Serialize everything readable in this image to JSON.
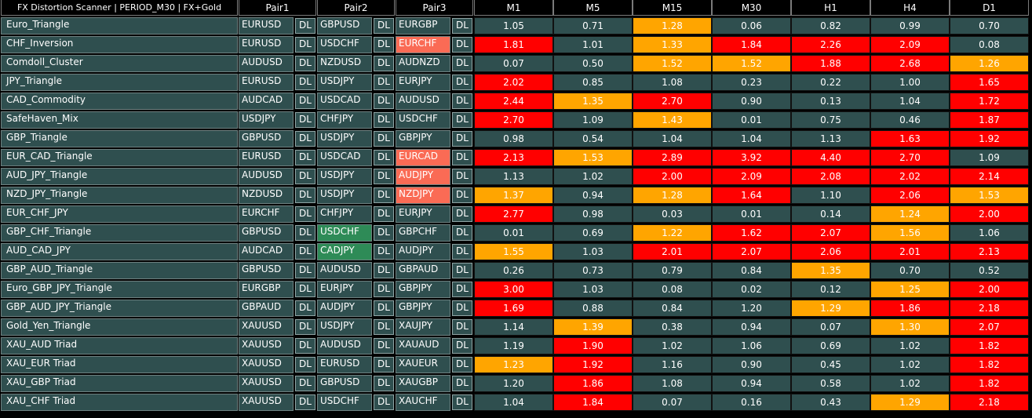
{
  "title": "FX Distortion Scanner | PERIOD_M30 | FX+Gold",
  "headers": [
    "Pair1",
    "Pair2",
    "Pair3",
    "M1",
    "M5",
    "M15",
    "M30",
    "H1",
    "H4",
    "D1"
  ],
  "dl_label": "DL",
  "colors": {
    "neutral": "#2f4f4f",
    "red": "#ff0000",
    "orange": "#ffa500",
    "pair_red": "#fa6b55",
    "pair_green": "#2e8b57"
  },
  "rows": [
    {
      "name": "Euro_Triangle",
      "pairs": [
        "EURUSD",
        "GBPUSD",
        "EURGBP"
      ],
      "pair_states": [
        "normal",
        "normal",
        "normal"
      ],
      "values": [
        "1.05",
        "0.71",
        "1.28",
        "0.06",
        "0.82",
        "0.99",
        "0.70"
      ],
      "states": [
        "neutral",
        "neutral",
        "orange",
        "neutral",
        "neutral",
        "neutral",
        "neutral"
      ]
    },
    {
      "name": "CHF_Inversion",
      "pairs": [
        "EURUSD",
        "USDCHF",
        "EURCHF"
      ],
      "pair_states": [
        "normal",
        "normal",
        "red"
      ],
      "values": [
        "1.81",
        "1.01",
        "1.33",
        "1.84",
        "2.26",
        "2.09",
        "0.08"
      ],
      "states": [
        "red",
        "neutral",
        "orange",
        "red",
        "red",
        "red",
        "neutral"
      ]
    },
    {
      "name": "Comdoll_Cluster",
      "pairs": [
        "AUDUSD",
        "NZDUSD",
        "AUDNZD"
      ],
      "pair_states": [
        "normal",
        "normal",
        "normal"
      ],
      "values": [
        "0.07",
        "0.50",
        "1.52",
        "1.52",
        "1.88",
        "2.68",
        "1.26"
      ],
      "states": [
        "neutral",
        "neutral",
        "orange",
        "orange",
        "red",
        "red",
        "orange"
      ]
    },
    {
      "name": "JPY_Triangle",
      "pairs": [
        "EURUSD",
        "USDJPY",
        "EURJPY"
      ],
      "pair_states": [
        "normal",
        "normal",
        "normal"
      ],
      "values": [
        "2.02",
        "0.85",
        "1.08",
        "0.23",
        "0.22",
        "1.00",
        "1.65"
      ],
      "states": [
        "red",
        "neutral",
        "neutral",
        "neutral",
        "neutral",
        "neutral",
        "red"
      ]
    },
    {
      "name": "CAD_Commodity",
      "pairs": [
        "AUDCAD",
        "USDCAD",
        "AUDUSD"
      ],
      "pair_states": [
        "normal",
        "normal",
        "normal"
      ],
      "values": [
        "2.44",
        "1.35",
        "2.70",
        "0.90",
        "0.13",
        "1.04",
        "1.72"
      ],
      "states": [
        "red",
        "orange",
        "red",
        "neutral",
        "neutral",
        "neutral",
        "red"
      ]
    },
    {
      "name": "SafeHaven_Mix",
      "pairs": [
        "USDJPY",
        "CHFJPY",
        "USDCHF"
      ],
      "pair_states": [
        "normal",
        "normal",
        "normal"
      ],
      "values": [
        "2.70",
        "1.09",
        "1.43",
        "0.01",
        "0.75",
        "0.46",
        "1.87"
      ],
      "states": [
        "red",
        "neutral",
        "orange",
        "neutral",
        "neutral",
        "neutral",
        "red"
      ]
    },
    {
      "name": "GBP_Triangle",
      "pairs": [
        "GBPUSD",
        "USDJPY",
        "GBPJPY"
      ],
      "pair_states": [
        "normal",
        "normal",
        "normal"
      ],
      "values": [
        "0.98",
        "0.54",
        "1.04",
        "1.04",
        "1.13",
        "1.63",
        "1.92"
      ],
      "states": [
        "neutral",
        "neutral",
        "neutral",
        "neutral",
        "neutral",
        "red",
        "red"
      ]
    },
    {
      "name": "EUR_CAD_Triangle",
      "pairs": [
        "EURUSD",
        "USDCAD",
        "EURCAD"
      ],
      "pair_states": [
        "normal",
        "normal",
        "red"
      ],
      "values": [
        "2.13",
        "1.53",
        "2.89",
        "3.92",
        "4.40",
        "2.70",
        "1.09"
      ],
      "states": [
        "red",
        "orange",
        "red",
        "red",
        "red",
        "red",
        "neutral"
      ]
    },
    {
      "name": "AUD_JPY_Triangle",
      "pairs": [
        "AUDUSD",
        "USDJPY",
        "AUDJPY"
      ],
      "pair_states": [
        "normal",
        "normal",
        "red"
      ],
      "values": [
        "1.13",
        "1.02",
        "2.00",
        "2.09",
        "2.08",
        "2.02",
        "2.14"
      ],
      "states": [
        "neutral",
        "neutral",
        "red",
        "red",
        "red",
        "red",
        "red"
      ]
    },
    {
      "name": "NZD_JPY_Triangle",
      "pairs": [
        "NZDUSD",
        "USDJPY",
        "NZDJPY"
      ],
      "pair_states": [
        "normal",
        "normal",
        "red"
      ],
      "values": [
        "1.37",
        "0.94",
        "1.28",
        "1.64",
        "1.10",
        "2.06",
        "1.53"
      ],
      "states": [
        "orange",
        "neutral",
        "orange",
        "red",
        "neutral",
        "red",
        "orange"
      ]
    },
    {
      "name": "EUR_CHF_JPY",
      "pairs": [
        "EURCHF",
        "CHFJPY",
        "EURJPY"
      ],
      "pair_states": [
        "normal",
        "normal",
        "normal"
      ],
      "values": [
        "2.77",
        "0.98",
        "0.03",
        "0.01",
        "0.14",
        "1.24",
        "2.00"
      ],
      "states": [
        "red",
        "neutral",
        "neutral",
        "neutral",
        "neutral",
        "orange",
        "red"
      ]
    },
    {
      "name": "GBP_CHF_Triangle",
      "pairs": [
        "GBPUSD",
        "USDCHF",
        "GBPCHF"
      ],
      "pair_states": [
        "normal",
        "green",
        "normal"
      ],
      "values": [
        "0.01",
        "0.69",
        "1.22",
        "1.62",
        "2.07",
        "1.56",
        "1.06"
      ],
      "states": [
        "neutral",
        "neutral",
        "orange",
        "red",
        "red",
        "orange",
        "neutral"
      ]
    },
    {
      "name": "AUD_CAD_JPY",
      "pairs": [
        "AUDCAD",
        "CADJPY",
        "AUDJPY"
      ],
      "pair_states": [
        "normal",
        "green",
        "normal"
      ],
      "values": [
        "1.55",
        "1.03",
        "2.01",
        "2.07",
        "2.06",
        "2.01",
        "2.13"
      ],
      "states": [
        "orange",
        "neutral",
        "red",
        "red",
        "red",
        "red",
        "red"
      ]
    },
    {
      "name": "GBP_AUD_Triangle",
      "pairs": [
        "GBPUSD",
        "AUDUSD",
        "GBPAUD"
      ],
      "pair_states": [
        "normal",
        "normal",
        "normal"
      ],
      "values": [
        "0.26",
        "0.73",
        "0.79",
        "0.84",
        "1.35",
        "0.70",
        "0.52"
      ],
      "states": [
        "neutral",
        "neutral",
        "neutral",
        "neutral",
        "orange",
        "neutral",
        "neutral"
      ]
    },
    {
      "name": "Euro_GBP_JPY_Triangle",
      "pairs": [
        "EURGBP",
        "EURJPY",
        "GBPJPY"
      ],
      "pair_states": [
        "normal",
        "normal",
        "normal"
      ],
      "values": [
        "3.00",
        "1.03",
        "0.08",
        "0.02",
        "0.12",
        "1.25",
        "2.00"
      ],
      "states": [
        "red",
        "neutral",
        "neutral",
        "neutral",
        "neutral",
        "orange",
        "red"
      ]
    },
    {
      "name": "GBP_AUD_JPY_Triangle",
      "pairs": [
        "GBPAUD",
        "AUDJPY",
        "GBPJPY"
      ],
      "pair_states": [
        "normal",
        "normal",
        "normal"
      ],
      "values": [
        "1.69",
        "0.88",
        "0.84",
        "1.20",
        "1.29",
        "1.86",
        "2.18"
      ],
      "states": [
        "red",
        "neutral",
        "neutral",
        "neutral",
        "orange",
        "red",
        "red"
      ]
    },
    {
      "name": "Gold_Yen_Triangle",
      "pairs": [
        "XAUUSD",
        "USDJPY",
        "XAUJPY"
      ],
      "pair_states": [
        "normal",
        "normal",
        "normal"
      ],
      "values": [
        "1.14",
        "1.39",
        "0.38",
        "0.94",
        "0.07",
        "1.30",
        "2.07"
      ],
      "states": [
        "neutral",
        "orange",
        "neutral",
        "neutral",
        "neutral",
        "orange",
        "red"
      ]
    },
    {
      "name": "XAU_AUD Triad",
      "pairs": [
        "XAUUSD",
        "AUDUSD",
        "XAUAUD"
      ],
      "pair_states": [
        "normal",
        "normal",
        "normal"
      ],
      "values": [
        "1.19",
        "1.90",
        "1.02",
        "1.06",
        "0.69",
        "1.02",
        "1.82"
      ],
      "states": [
        "neutral",
        "red",
        "neutral",
        "neutral",
        "neutral",
        "neutral",
        "red"
      ]
    },
    {
      "name": "XAU_EUR Triad",
      "pairs": [
        "XAUUSD",
        "EURUSD",
        "XAUEUR"
      ],
      "pair_states": [
        "normal",
        "normal",
        "normal"
      ],
      "values": [
        "1.23",
        "1.92",
        "1.16",
        "0.90",
        "0.45",
        "1.02",
        "1.82"
      ],
      "states": [
        "orange",
        "red",
        "neutral",
        "neutral",
        "neutral",
        "neutral",
        "red"
      ]
    },
    {
      "name": "XAU_GBP Triad",
      "pairs": [
        "XAUUSD",
        "GBPUSD",
        "XAUGBP"
      ],
      "pair_states": [
        "normal",
        "normal",
        "normal"
      ],
      "values": [
        "1.20",
        "1.86",
        "1.08",
        "0.94",
        "0.58",
        "1.02",
        "1.82"
      ],
      "states": [
        "neutral",
        "red",
        "neutral",
        "neutral",
        "neutral",
        "neutral",
        "red"
      ]
    },
    {
      "name": "XAU_CHF Triad",
      "pairs": [
        "XAUUSD",
        "USDCHF",
        "XAUCHF"
      ],
      "pair_states": [
        "normal",
        "normal",
        "normal"
      ],
      "values": [
        "1.04",
        "1.84",
        "0.07",
        "0.16",
        "0.43",
        "1.29",
        "2.18"
      ],
      "states": [
        "neutral",
        "red",
        "neutral",
        "neutral",
        "neutral",
        "orange",
        "red"
      ]
    }
  ]
}
